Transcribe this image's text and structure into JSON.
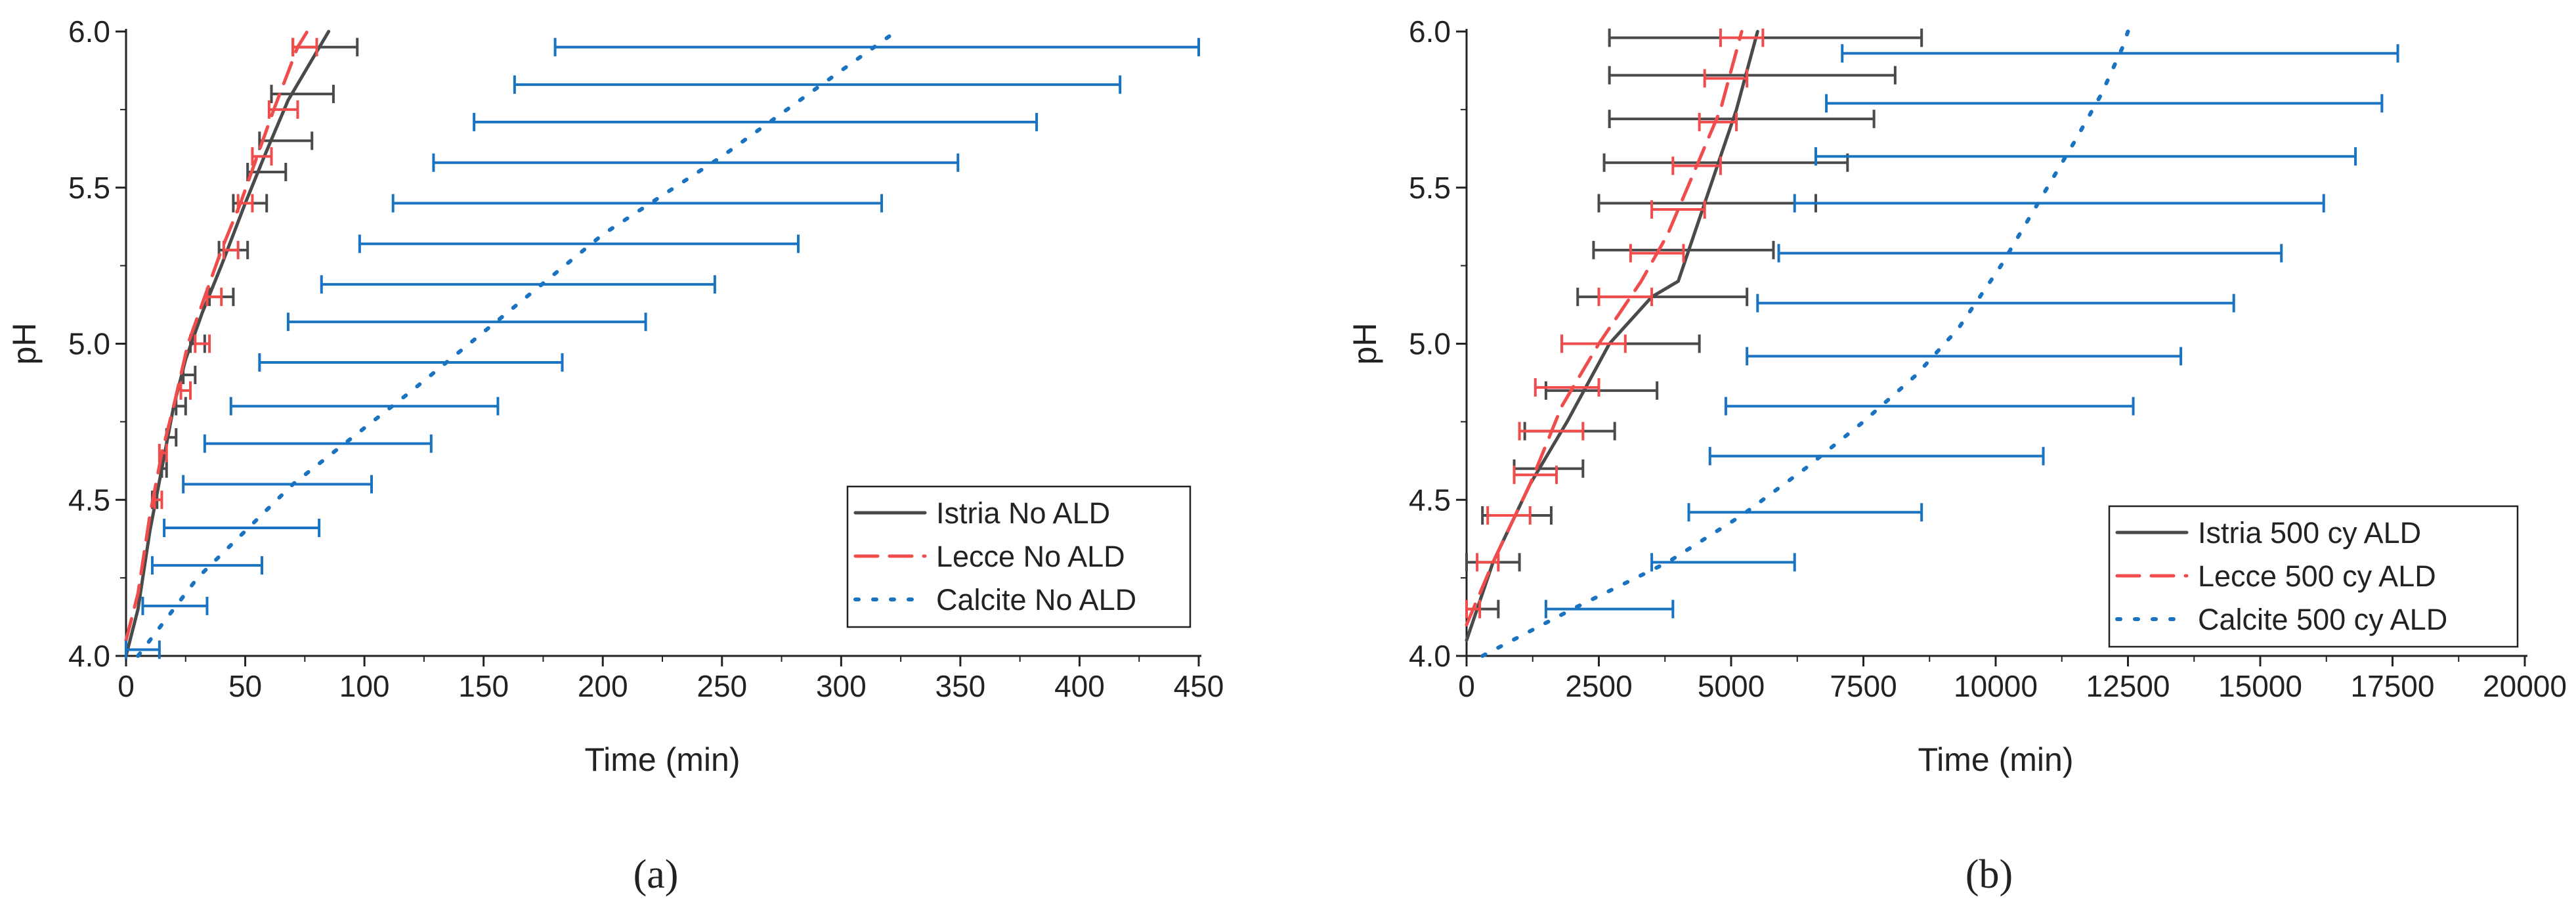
{
  "chart_data": [
    {
      "type": "line",
      "panel_label": "(a)",
      "xlabel": "Time (min)",
      "ylabel": "pH",
      "xlim": [
        0,
        450
      ],
      "ylim": [
        4.0,
        6.0
      ],
      "xticks": [
        0,
        50,
        100,
        150,
        200,
        250,
        300,
        350,
        400,
        450
      ],
      "xtick_labels": [
        "0",
        "50",
        "100",
        "150",
        "200",
        "250",
        "300",
        "350",
        "400",
        "450"
      ],
      "yticks": [
        4.0,
        4.5,
        5.0,
        5.5,
        6.0
      ],
      "ytick_labels": [
        "4.0",
        "4.5",
        "5.0",
        "5.5",
        "6.0"
      ],
      "legend_position": "bottom-right",
      "series": [
        {
          "name": "Istria No ALD",
          "color": "#4a4a4a",
          "style": "solid",
          "points": [
            [
              0,
              4.0
            ],
            [
              5,
              4.15
            ],
            [
              10,
              4.4
            ],
            [
              15,
              4.6
            ],
            [
              20,
              4.8
            ],
            [
              25,
              4.95
            ],
            [
              32,
              5.1
            ],
            [
              40,
              5.25
            ],
            [
              50,
              5.45
            ],
            [
              58,
              5.6
            ],
            [
              68,
              5.78
            ],
            [
              85,
              6.0
            ]
          ],
          "errorbars": [
            {
              "y": 4.5,
              "x": 12,
              "lo": 11,
              "hi": 13
            },
            {
              "y": 4.6,
              "x": 16,
              "lo": 15,
              "hi": 17
            },
            {
              "y": 4.7,
              "x": 19,
              "lo": 17,
              "hi": 21
            },
            {
              "y": 4.8,
              "x": 23,
              "lo": 21,
              "hi": 25
            },
            {
              "y": 4.9,
              "x": 26,
              "lo": 24,
              "hi": 29
            },
            {
              "y": 5.0,
              "x": 30,
              "lo": 27,
              "hi": 33
            },
            {
              "y": 5.15,
              "x": 40,
              "lo": 35,
              "hi": 45
            },
            {
              "y": 5.3,
              "x": 45,
              "lo": 39,
              "hi": 51
            },
            {
              "y": 5.45,
              "x": 52,
              "lo": 45,
              "hi": 59
            },
            {
              "y": 5.55,
              "x": 58,
              "lo": 51,
              "hi": 67
            },
            {
              "y": 5.65,
              "x": 65,
              "lo": 56,
              "hi": 78
            },
            {
              "y": 5.8,
              "x": 72,
              "lo": 61,
              "hi": 87
            },
            {
              "y": 5.95,
              "x": 83,
              "lo": 70,
              "hi": 97
            }
          ]
        },
        {
          "name": "Lecce No ALD",
          "color": "#f04c4c",
          "style": "dashed",
          "points": [
            [
              0,
              4.05
            ],
            [
              5,
              4.2
            ],
            [
              10,
              4.45
            ],
            [
              15,
              4.65
            ],
            [
              20,
              4.8
            ],
            [
              26,
              5.0
            ],
            [
              33,
              5.15
            ],
            [
              40,
              5.3
            ],
            [
              48,
              5.45
            ],
            [
              55,
              5.6
            ],
            [
              62,
              5.75
            ],
            [
              72,
              5.95
            ],
            [
              76,
              6.0
            ]
          ],
          "errorbars": [
            {
              "y": 4.5,
              "x": 13,
              "lo": 12,
              "hi": 15
            },
            {
              "y": 4.65,
              "x": 15,
              "lo": 14,
              "hi": 17
            },
            {
              "y": 4.85,
              "x": 25,
              "lo": 23,
              "hi": 27
            },
            {
              "y": 5.0,
              "x": 32,
              "lo": 29,
              "hi": 35
            },
            {
              "y": 5.15,
              "x": 37,
              "lo": 34,
              "hi": 40
            },
            {
              "y": 5.3,
              "x": 44,
              "lo": 41,
              "hi": 47
            },
            {
              "y": 5.45,
              "x": 50,
              "lo": 47,
              "hi": 53
            },
            {
              "y": 5.6,
              "x": 57,
              "lo": 53,
              "hi": 61
            },
            {
              "y": 5.75,
              "x": 66,
              "lo": 60,
              "hi": 72
            },
            {
              "y": 5.95,
              "x": 75,
              "lo": 70,
              "hi": 80
            }
          ]
        },
        {
          "name": "Calcite No ALD",
          "color": "#1a73c0",
          "style": "dotted",
          "points": [
            [
              5,
              4.0
            ],
            [
              30,
              4.25
            ],
            [
              70,
              4.55
            ],
            [
              120,
              4.85
            ],
            [
              160,
              5.1
            ],
            [
              200,
              5.35
            ],
            [
              250,
              5.6
            ],
            [
              290,
              5.82
            ],
            [
              323,
              6.0
            ]
          ],
          "errorbars": [
            {
              "y": 4.02,
              "x": 5,
              "lo": 0,
              "hi": 14
            },
            {
              "y": 4.16,
              "x": 20,
              "lo": 7,
              "hi": 34
            },
            {
              "y": 4.29,
              "x": 35,
              "lo": 11,
              "hi": 57
            },
            {
              "y": 4.41,
              "x": 50,
              "lo": 16,
              "hi": 81
            },
            {
              "y": 4.55,
              "x": 62,
              "lo": 24,
              "hi": 103
            },
            {
              "y": 4.68,
              "x": 80,
              "lo": 33,
              "hi": 128
            },
            {
              "y": 4.8,
              "x": 100,
              "lo": 44,
              "hi": 156
            },
            {
              "y": 4.94,
              "x": 118,
              "lo": 56,
              "hi": 183
            },
            {
              "y": 5.07,
              "x": 143,
              "lo": 68,
              "hi": 218
            },
            {
              "y": 5.19,
              "x": 163,
              "lo": 82,
              "hi": 247
            },
            {
              "y": 5.32,
              "x": 190,
              "lo": 98,
              "hi": 282
            },
            {
              "y": 5.45,
              "x": 213,
              "lo": 112,
              "hi": 317
            },
            {
              "y": 5.58,
              "x": 238,
              "lo": 129,
              "hi": 349
            },
            {
              "y": 5.71,
              "x": 263,
              "lo": 146,
              "hi": 382
            },
            {
              "y": 5.83,
              "x": 288,
              "lo": 163,
              "hi": 417
            },
            {
              "y": 5.95,
              "x": 315,
              "lo": 180,
              "hi": 450
            }
          ]
        }
      ]
    },
    {
      "type": "line",
      "panel_label": "(b)",
      "xlabel": "Time (min)",
      "ylabel": "pH",
      "xlim": [
        0,
        20000
      ],
      "ylim": [
        4.0,
        6.0
      ],
      "xticks": [
        0,
        2500,
        5000,
        7500,
        10000,
        12500,
        15000,
        17500,
        20000
      ],
      "xtick_labels": [
        "0",
        "2500",
        "5000",
        "7500",
        "10000",
        "12500",
        "15000",
        "17500",
        "20000"
      ],
      "yticks": [
        4.0,
        4.5,
        5.0,
        5.5,
        6.0
      ],
      "ytick_labels": [
        "4.0",
        "4.5",
        "5.0",
        "5.5",
        "6.0"
      ],
      "legend_position": "bottom-right",
      "series": [
        {
          "name": "Istria 500 cy ALD",
          "color": "#4a4a4a",
          "style": "solid",
          "points": [
            [
              0,
              4.05
            ],
            [
              500,
              4.3
            ],
            [
              1200,
              4.55
            ],
            [
              1900,
              4.75
            ],
            [
              2700,
              5.0
            ],
            [
              3500,
              5.15
            ],
            [
              4000,
              5.2
            ],
            [
              4300,
              5.35
            ],
            [
              4700,
              5.55
            ],
            [
              5100,
              5.75
            ],
            [
              5500,
              6.0
            ]
          ],
          "errorbars": [
            {
              "y": 4.15,
              "x": 200,
              "lo": -200,
              "hi": 600
            },
            {
              "y": 4.3,
              "x": 400,
              "lo": -200,
              "hi": 1000
            },
            {
              "y": 4.45,
              "x": 1000,
              "lo": 300,
              "hi": 1600
            },
            {
              "y": 4.6,
              "x": 1500,
              "lo": 900,
              "hi": 2200
            },
            {
              "y": 4.72,
              "x": 1900,
              "lo": 1100,
              "hi": 2800
            },
            {
              "y": 4.85,
              "x": 2300,
              "lo": 1500,
              "hi": 3600
            },
            {
              "y": 5.0,
              "x": 2900,
              "lo": 1800,
              "hi": 4400
            },
            {
              "y": 5.15,
              "x": 3700,
              "lo": 2100,
              "hi": 5300
            },
            {
              "y": 5.3,
              "x": 4100,
              "lo": 2400,
              "hi": 5800
            },
            {
              "y": 5.45,
              "x": 4400,
              "lo": 2500,
              "hi": 6600
            },
            {
              "y": 5.58,
              "x": 4600,
              "lo": 2600,
              "hi": 7200
            },
            {
              "y": 5.72,
              "x": 4900,
              "lo": 2700,
              "hi": 7700
            },
            {
              "y": 5.86,
              "x": 5200,
              "lo": 2700,
              "hi": 8100
            },
            {
              "y": 5.98,
              "x": 5500,
              "lo": 2700,
              "hi": 8600
            }
          ]
        },
        {
          "name": "Lecce 500 cy ALD",
          "color": "#f04c4c",
          "style": "dashed",
          "points": [
            [
              0,
              4.1
            ],
            [
              500,
              4.3
            ],
            [
              1200,
              4.55
            ],
            [
              1800,
              4.8
            ],
            [
              2500,
              5.0
            ],
            [
              3300,
              5.2
            ],
            [
              3800,
              5.35
            ],
            [
              4300,
              5.55
            ],
            [
              4800,
              5.75
            ],
            [
              5200,
              6.0
            ]
          ],
          "errorbars": [
            {
              "y": 4.15,
              "x": 100,
              "lo": 0,
              "hi": 250
            },
            {
              "y": 4.3,
              "x": 400,
              "lo": 200,
              "hi": 600
            },
            {
              "y": 4.45,
              "x": 800,
              "lo": 400,
              "hi": 1200
            },
            {
              "y": 4.58,
              "x": 1300,
              "lo": 900,
              "hi": 1700
            },
            {
              "y": 4.72,
              "x": 1600,
              "lo": 1000,
              "hi": 2200
            },
            {
              "y": 4.86,
              "x": 1900,
              "lo": 1300,
              "hi": 2500
            },
            {
              "y": 5.0,
              "x": 2400,
              "lo": 1800,
              "hi": 3000
            },
            {
              "y": 5.15,
              "x": 3000,
              "lo": 2500,
              "hi": 3500
            },
            {
              "y": 5.29,
              "x": 3600,
              "lo": 3100,
              "hi": 4100
            },
            {
              "y": 5.43,
              "x": 4000,
              "lo": 3500,
              "hi": 4500
            },
            {
              "y": 5.57,
              "x": 4400,
              "lo": 3900,
              "hi": 4800
            },
            {
              "y": 5.71,
              "x": 4800,
              "lo": 4400,
              "hi": 5100
            },
            {
              "y": 5.85,
              "x": 5000,
              "lo": 4500,
              "hi": 5300
            },
            {
              "y": 5.98,
              "x": 5100,
              "lo": 4800,
              "hi": 5600
            }
          ]
        },
        {
          "name": "Calcite 500 cy ALD",
          "color": "#1a73c0",
          "style": "dotted",
          "points": [
            [
              300,
              4.0
            ],
            [
              2000,
              4.15
            ],
            [
              3800,
              4.3
            ],
            [
              5200,
              4.45
            ],
            [
              6400,
              4.6
            ],
            [
              7500,
              4.75
            ],
            [
              8500,
              4.9
            ],
            [
              9300,
              5.05
            ],
            [
              10100,
              5.25
            ],
            [
              10800,
              5.45
            ],
            [
              11500,
              5.65
            ],
            [
              12000,
              5.8
            ],
            [
              12400,
              5.95
            ],
            [
              12500,
              6.0
            ]
          ],
          "errorbars": [
            {
              "y": 4.15,
              "x": 2700,
              "lo": 1500,
              "hi": 3900
            },
            {
              "y": 4.3,
              "x": 4800,
              "lo": 3500,
              "hi": 6200
            },
            {
              "y": 4.46,
              "x": 6400,
              "lo": 4200,
              "hi": 8600
            },
            {
              "y": 4.64,
              "x": 7700,
              "lo": 4600,
              "hi": 10900
            },
            {
              "y": 4.8,
              "x": 8700,
              "lo": 4900,
              "hi": 12600
            },
            {
              "y": 4.96,
              "x": 9400,
              "lo": 5300,
              "hi": 13500
            },
            {
              "y": 5.13,
              "x": 10000,
              "lo": 5500,
              "hi": 14500
            },
            {
              "y": 5.29,
              "x": 10700,
              "lo": 5900,
              "hi": 15400
            },
            {
              "y": 5.45,
              "x": 11300,
              "lo": 6200,
              "hi": 16200
            },
            {
              "y": 5.6,
              "x": 11700,
              "lo": 6600,
              "hi": 16800
            },
            {
              "y": 5.77,
              "x": 12200,
              "lo": 6800,
              "hi": 17300
            },
            {
              "y": 5.93,
              "x": 12400,
              "lo": 7100,
              "hi": 17600
            }
          ]
        }
      ]
    }
  ]
}
